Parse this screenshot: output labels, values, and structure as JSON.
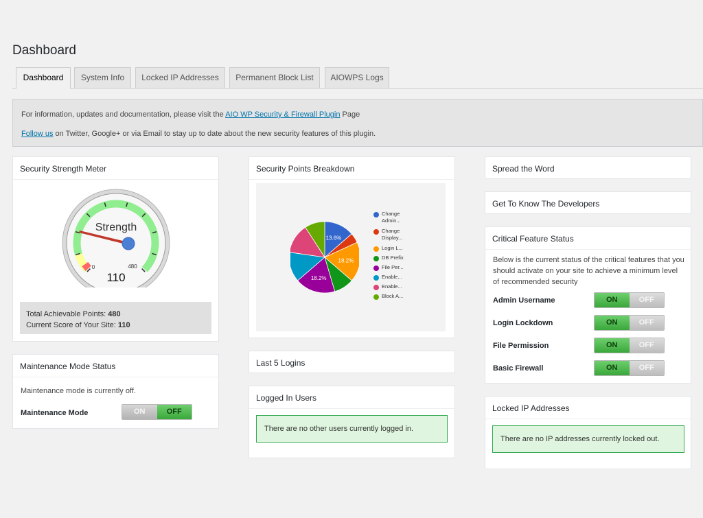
{
  "page": {
    "title": "Dashboard"
  },
  "tabs": [
    "Dashboard",
    "System Info",
    "Locked IP Addresses",
    "Permanent Block List",
    "AIOWPS Logs"
  ],
  "notice": {
    "line1_prefix": "For information, updates and documentation, please visit the ",
    "line1_link": "AIO WP Security & Firewall Plugin",
    "line1_suffix": " Page",
    "line2_link": "Follow us",
    "line2_suffix": " on Twitter, Google+ or via Email to stay up to date about the new security features of this plugin."
  },
  "strength_meter": {
    "title": "Security Strength Meter",
    "gauge_label": "Strength",
    "gauge_value": "110",
    "gauge_min": "0",
    "gauge_max": "480",
    "total_points_label": "Total Achievable Points: ",
    "total_points_value": "480",
    "current_score_label": "Current Score of Your Site: ",
    "current_score_value": "110",
    "colors": {
      "green_band": "#90ee90",
      "yellow_band": "#ffff99",
      "red_band": "#ff6666",
      "needle": "#c0392b",
      "hub": "#4a7fd4"
    }
  },
  "maintenance": {
    "title": "Maintenance Mode Status",
    "status_text": "Maintenance mode is currently off.",
    "label": "Maintenance Mode",
    "on_label": "ON",
    "off_label": "OFF",
    "state": "off"
  },
  "points_breakdown": {
    "title": "Security Points Breakdown",
    "legend": [
      {
        "label": "Change",
        "label2": "Admin...",
        "color": "#3366cc"
      },
      {
        "label": "Change",
        "label2": "Display...",
        "color": "#dc3912"
      },
      {
        "label": "Login L...",
        "color": "#ff9900"
      },
      {
        "label": "DB Prefix",
        "color": "#109618"
      },
      {
        "label": "File Per...",
        "color": "#990099"
      },
      {
        "label": "Enable...",
        "color": "#0099c6"
      },
      {
        "label": "Enable...",
        "color": "#dd4477"
      },
      {
        "label": "Block A...",
        "color": "#66aa00"
      }
    ],
    "slice_labels": [
      "13.6%",
      "18.2%",
      "18.2%"
    ]
  },
  "chart_data": {
    "type": "pie",
    "title": "",
    "categories": [
      "Change Admin...",
      "Change Display...",
      "Login L...",
      "DB Prefix",
      "File Per...",
      "Enable...",
      "Enable...",
      "Block A..."
    ],
    "values": [
      13.6,
      4.5,
      18.2,
      9.1,
      18.2,
      13.6,
      13.6,
      9.1
    ],
    "colors": [
      "#3366cc",
      "#dc3912",
      "#ff9900",
      "#109618",
      "#990099",
      "#0099c6",
      "#dd4477",
      "#66aa00"
    ],
    "printed_labels": [
      "13.6%",
      "",
      "18.2%",
      "",
      "18.2%",
      "",
      "",
      ""
    ]
  },
  "last_logins": {
    "title": "Last 5 Logins"
  },
  "logged_in_users": {
    "title": "Logged In Users",
    "message": "There are no other users currently logged in."
  },
  "spread_word": {
    "title": "Spread the Word"
  },
  "developers": {
    "title": "Get To Know The Developers"
  },
  "critical_features": {
    "title": "Critical Feature Status",
    "description": "Below is the current status of the critical features that you should activate on your site to achieve a minimum level of recommended security",
    "on_label": "ON",
    "off_label": "OFF",
    "items": [
      {
        "label": "Admin Username",
        "state": "on"
      },
      {
        "label": "Login Lockdown",
        "state": "on"
      },
      {
        "label": "File Permission",
        "state": "on"
      },
      {
        "label": "Basic Firewall",
        "state": "on"
      }
    ]
  },
  "locked_ips": {
    "title": "Locked IP Addresses",
    "message": "There are no IP addresses currently locked out."
  }
}
